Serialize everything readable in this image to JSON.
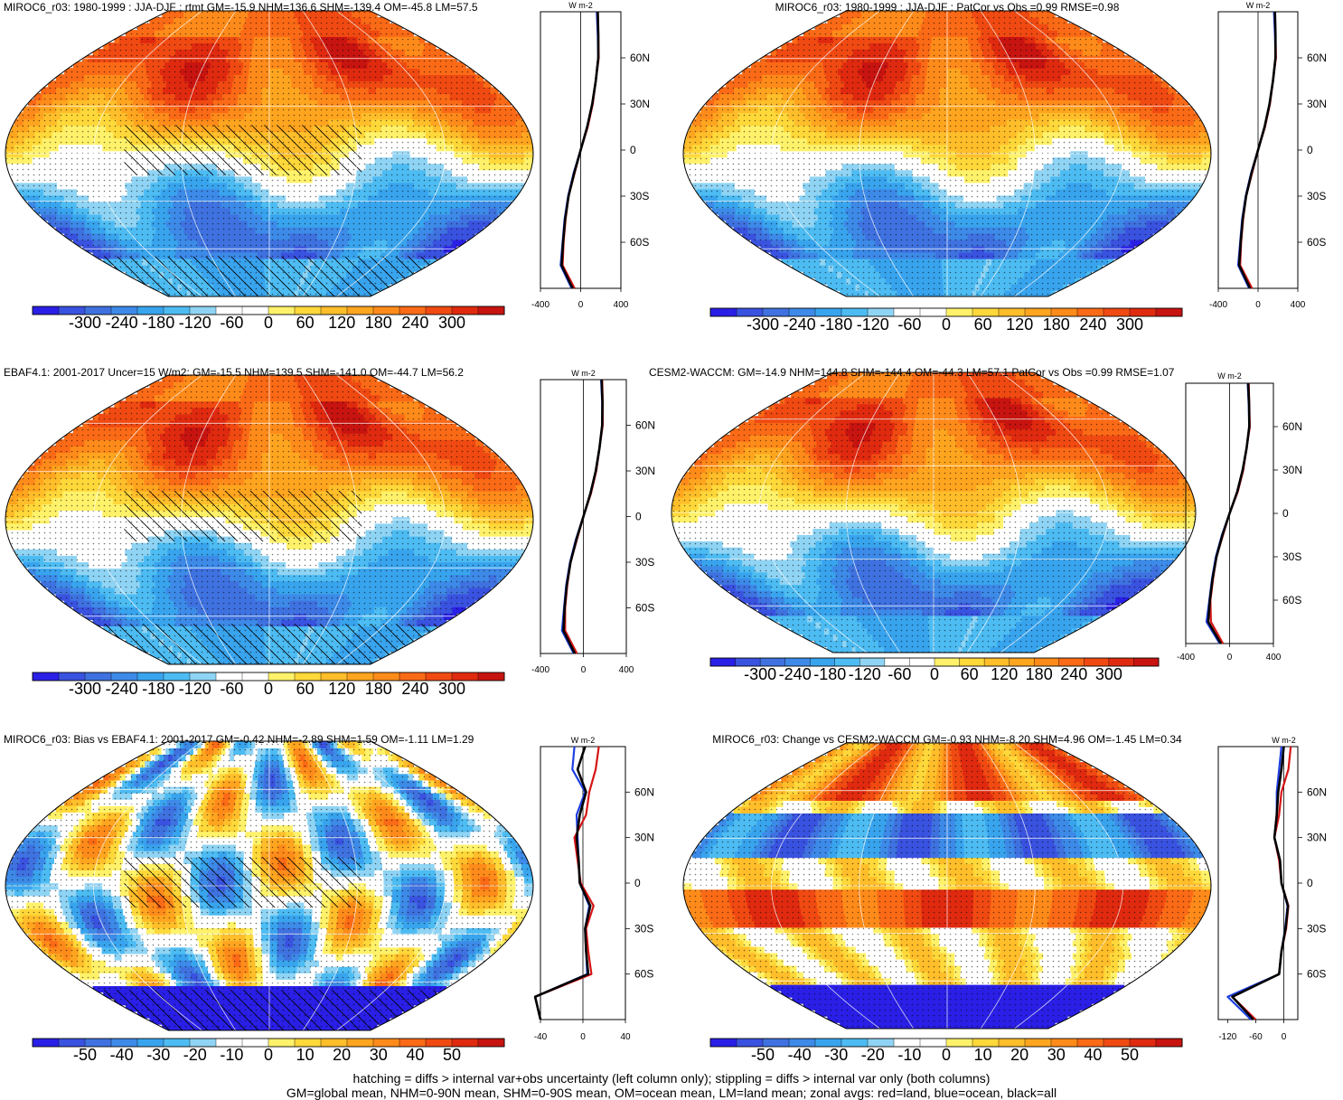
{
  "panels": [
    {
      "title": "MIROC6_r03: 1980-1999 : JJA-DJF : rtmt GM=-15.9 NHM=136.6 SHM=-139.4 OM=-45.8 LM=57.5",
      "field": "model-mean",
      "colorbar": {
        "ticks": [
          "-300",
          "-240",
          "-180",
          "-120",
          "-60",
          "0",
          "60",
          "120",
          "180",
          "240",
          "300"
        ]
      },
      "zonal": {
        "unit": "W m-2",
        "xticks": [
          "-400",
          "0",
          "400"
        ],
        "lat_labels": [
          "60N",
          "30N",
          "0",
          "30S",
          "60S"
        ]
      },
      "hatching": true
    },
    {
      "title": "MIROC6_r03: 1980-1999 : JJA-DJF : PatCor vs Obs =0.99 RMSE=0.98",
      "field": "model-mean",
      "colorbar": {
        "ticks": [
          "-300",
          "-240",
          "-180",
          "-120",
          "-60",
          "0",
          "60",
          "120",
          "180",
          "240",
          "300"
        ]
      },
      "zonal": {
        "unit": "W m-2",
        "xticks": [
          "-400",
          "0",
          "400"
        ],
        "lat_labels": [
          "60N",
          "30N",
          "0",
          "30S",
          "60S"
        ]
      },
      "hatching": false
    },
    {
      "title": "EBAF4.1: 2001-2017 Uncer=15 W/m2: GM=-15.5 NHM=139.5 SHM=-141.0 OM=-44.7 LM=56.2",
      "field": "obs-mean",
      "colorbar": {
        "ticks": [
          "-300",
          "-240",
          "-180",
          "-120",
          "-60",
          "0",
          "60",
          "120",
          "180",
          "240",
          "300"
        ]
      },
      "zonal": {
        "unit": "W m-2",
        "xticks": [
          "-400",
          "0",
          "400"
        ],
        "lat_labels": [
          "60N",
          "30N",
          "0",
          "30S",
          "60S"
        ]
      },
      "hatching": true
    },
    {
      "title": "CESM2-WACCM: GM=-14.9 NHM=144.8 SHM=-144.4 OM=-44.3 LM=57.1 PatCor vs Obs =0.99 RMSE=1.07",
      "field": "model-mean",
      "colorbar": {
        "ticks": [
          "-300",
          "-240",
          "-180",
          "-120",
          "-60",
          "0",
          "60",
          "120",
          "180",
          "240",
          "300"
        ]
      },
      "zonal": {
        "unit": "W m-2",
        "xticks": [
          "-400",
          "0",
          "400"
        ],
        "lat_labels": [
          "60N",
          "30N",
          "0",
          "30S",
          "60S"
        ]
      },
      "hatching": false
    },
    {
      "title": "MIROC6_r03: Bias vs EBAF4.1: 2001-2017 GM=-0.42 NHM=-2.89 SHM=1.59 OM=-1.11 LM=1.29",
      "field": "bias",
      "colorbar": {
        "ticks": [
          "-50",
          "-40",
          "-30",
          "-20",
          "-10",
          "0",
          "10",
          "20",
          "30",
          "40",
          "50"
        ]
      },
      "zonal": {
        "unit": "W m-2",
        "xticks": [
          "-40",
          "0",
          "40"
        ],
        "lat_labels": [
          "60N",
          "30N",
          "0",
          "30S",
          "60S"
        ]
      },
      "hatching": true
    },
    {
      "title": "MIROC6_r03: Change vs CESM2-WACCM GM=-0.93 NHM=-8.20 SHM=4.96 OM=-1.45 LM=0.34",
      "field": "change",
      "colorbar": {
        "ticks": [
          "-50",
          "-40",
          "-30",
          "-20",
          "-10",
          "0",
          "10",
          "20",
          "30",
          "40",
          "50"
        ]
      },
      "zonal": {
        "unit": "W m-2",
        "xticks": [
          "-120",
          "-60",
          "0"
        ],
        "lat_labels": [
          "60N",
          "30N",
          "0",
          "30S",
          "60S"
        ]
      },
      "hatching": false
    }
  ],
  "colors": {
    "palette": [
      "#2a1fe6",
      "#3a52e0",
      "#3f72e0",
      "#3d8ae8",
      "#39a4ee",
      "#4dbcf3",
      "#8fd4f4",
      "#ffffff",
      "#ffffff",
      "#fff26a",
      "#ffd83a",
      "#ffbe2a",
      "#ffa51f",
      "#ff8b1a",
      "#fb6a16",
      "#f04a12",
      "#e02a10",
      "#c81410"
    ],
    "land_line": "#d61515",
    "ocean_line": "#1f3fe0",
    "all_line": "#000000"
  },
  "footer": {
    "line1": "hatching = diffs > internal var+obs uncertainty (left column only); stippling = diffs > internal var only (both columns)",
    "line2": "GM=global mean, NHM=0-90N mean, SHM=0-90S mean, OM=ocean mean, LM=land mean; zonal avgs: red=land, blue=ocean, black=all"
  },
  "chart_data": [
    {
      "type": "heatmap",
      "title": "MIROC6_r03: 1980-1999 : JJA-DJF : rtmt GM=-15.9 NHM=136.6 SHM=-139.4 OM=-45.8 LM=57.5",
      "colorbar_range": [
        -300,
        300
      ],
      "zonal_mean": {
        "unit": "W m-2",
        "xlim": [
          -400,
          400
        ],
        "lat": [
          90,
          75,
          60,
          45,
          30,
          15,
          0,
          -15,
          -30,
          -45,
          -60,
          -75,
          -90
        ],
        "series": [
          {
            "name": "land",
            "values": [
              170,
              175,
              180,
              150,
              120,
              70,
              0,
              -60,
              -120,
              -150,
              -170,
              -180,
              -60
            ]
          },
          {
            "name": "ocean",
            "values": [
              160,
              170,
              175,
              150,
              115,
              65,
              0,
              -70,
              -125,
              -160,
              -180,
              -200,
              -90
            ]
          },
          {
            "name": "all",
            "values": [
              170,
              175,
              175,
              150,
              115,
              65,
              0,
              -65,
              -120,
              -155,
              -175,
              -190,
              -80
            ]
          }
        ]
      }
    },
    {
      "type": "heatmap",
      "title": "MIROC6_r03: 1980-1999 : JJA-DJF : PatCor vs Obs =0.99 RMSE=0.98",
      "colorbar_range": [
        -300,
        300
      ],
      "zonal_mean": {
        "unit": "W m-2",
        "xlim": [
          -400,
          400
        ],
        "lat": [
          90,
          75,
          60,
          45,
          30,
          15,
          0,
          -15,
          -30,
          -45,
          -60,
          -75,
          -90
        ],
        "series": [
          {
            "name": "land",
            "values": [
              170,
              175,
              180,
              150,
              120,
              70,
              0,
              -60,
              -120,
              -150,
              -170,
              -180,
              -60
            ]
          },
          {
            "name": "ocean",
            "values": [
              160,
              170,
              175,
              150,
              115,
              65,
              0,
              -70,
              -125,
              -160,
              -180,
              -200,
              -90
            ]
          },
          {
            "name": "all",
            "values": [
              170,
              175,
              175,
              150,
              115,
              65,
              0,
              -65,
              -120,
              -155,
              -175,
              -190,
              -80
            ]
          }
        ]
      }
    },
    {
      "type": "heatmap",
      "title": "EBAF4.1: 2001-2017 Uncer=15 W/m2: GM=-15.5 NHM=139.5 SHM=-141.0 OM=-44.7 LM=56.2",
      "colorbar_range": [
        -300,
        300
      ],
      "zonal_mean": {
        "unit": "W m-2",
        "xlim": [
          -400,
          400
        ],
        "lat": [
          90,
          75,
          60,
          45,
          30,
          15,
          0,
          -15,
          -30,
          -45,
          -60,
          -75,
          -90
        ],
        "series": [
          {
            "name": "land",
            "values": [
              175,
              180,
              180,
              150,
              120,
              70,
              0,
              -60,
              -120,
              -150,
              -170,
              -170,
              -60
            ]
          },
          {
            "name": "ocean",
            "values": [
              165,
              175,
              175,
              150,
              115,
              65,
              0,
              -70,
              -125,
              -160,
              -180,
              -200,
              -90
            ]
          },
          {
            "name": "all",
            "values": [
              170,
              178,
              175,
              150,
              115,
              65,
              0,
              -65,
              -120,
              -155,
              -175,
              -185,
              -80
            ]
          }
        ]
      }
    },
    {
      "type": "heatmap",
      "title": "CESM2-WACCM: GM=-14.9 NHM=144.8 SHM=-144.4 OM=-44.3 LM=57.1 PatCor vs Obs =0.99 RMSE=1.07",
      "colorbar_range": [
        -300,
        300
      ],
      "zonal_mean": {
        "unit": "W m-2",
        "xlim": [
          -400,
          400
        ],
        "lat": [
          90,
          75,
          60,
          45,
          30,
          15,
          0,
          -15,
          -30,
          -45,
          -60,
          -75,
          -90
        ],
        "series": [
          {
            "name": "land",
            "values": [
              175,
              180,
              185,
              155,
              125,
              75,
              0,
              -60,
              -120,
              -150,
              -175,
              -170,
              -60
            ]
          },
          {
            "name": "ocean",
            "values": [
              165,
              175,
              180,
              155,
              120,
              70,
              0,
              -70,
              -125,
              -160,
              -185,
              -210,
              -90
            ]
          },
          {
            "name": "all",
            "values": [
              170,
              178,
              180,
              155,
              120,
              70,
              0,
              -65,
              -120,
              -155,
              -180,
              -195,
              -80
            ]
          }
        ]
      }
    },
    {
      "type": "heatmap",
      "title": "MIROC6_r03: Bias vs EBAF4.1: 2001-2017 GM=-0.42 NHM=-2.89 SHM=1.59 OM=-1.11 LM=1.29",
      "colorbar_range": [
        -50,
        50
      ],
      "zonal_mean": {
        "unit": "W m-2",
        "xlim": [
          -40,
          40
        ],
        "lat": [
          90,
          75,
          60,
          45,
          30,
          15,
          0,
          -15,
          -30,
          -45,
          -60,
          -75,
          -90
        ],
        "series": [
          {
            "name": "land",
            "values": [
              15,
              12,
              6,
              3,
              -8,
              -5,
              -2,
              10,
              3,
              5,
              8,
              -45,
              -40
            ]
          },
          {
            "name": "ocean",
            "values": [
              -8,
              -10,
              2,
              -6,
              -5,
              -4,
              -3,
              6,
              2,
              3,
              4,
              -45,
              -40
            ]
          },
          {
            "name": "all",
            "values": [
              2,
              -5,
              3,
              -3,
              -6,
              -4,
              -3,
              7,
              2,
              3,
              5,
              -45,
              -40
            ]
          }
        ]
      }
    },
    {
      "type": "heatmap",
      "title": "MIROC6_r03: Change vs CESM2-WACCM GM=-0.93 NHM=-8.20 SHM=4.96 OM=-1.45 LM=0.34",
      "colorbar_range": [
        -50,
        50
      ],
      "zonal_mean": {
        "unit": "W m-2",
        "xlim": [
          -140,
          30
        ],
        "lat": [
          90,
          75,
          60,
          45,
          30,
          15,
          0,
          -15,
          -30,
          -45,
          -60,
          -75,
          -90
        ],
        "series": [
          {
            "name": "land",
            "values": [
              15,
              10,
              -5,
              -10,
              -20,
              -10,
              -5,
              10,
              5,
              -5,
              -10,
              -110,
              -60
            ]
          },
          {
            "name": "ocean",
            "values": [
              -5,
              -10,
              -15,
              -15,
              -20,
              -8,
              -5,
              8,
              3,
              -5,
              -10,
              -120,
              -70
            ]
          },
          {
            "name": "all",
            "values": [
              0,
              -5,
              -12,
              -15,
              -20,
              -8,
              -5,
              9,
              4,
              -5,
              -10,
              -110,
              -65
            ]
          }
        ]
      }
    }
  ]
}
